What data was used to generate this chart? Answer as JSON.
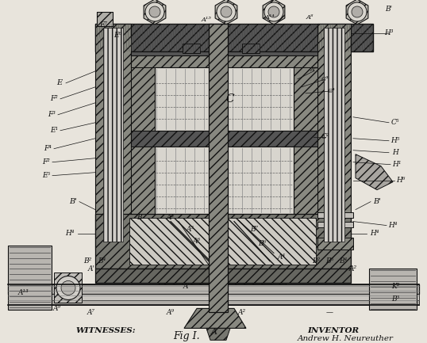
{
  "fig_label": "Fig I.",
  "inventor_text": "INVENTOR",
  "inventor_name": "Andrew H. Neureuther",
  "witnesses_text": "WITNESSES:",
  "bg": "#e8e4dc",
  "lc": "#111111",
  "dark_hatch": "#222222",
  "gray_fill": "#aaaaaa",
  "mid_fill": "#cccccc",
  "light_fill": "#e0ddd5"
}
